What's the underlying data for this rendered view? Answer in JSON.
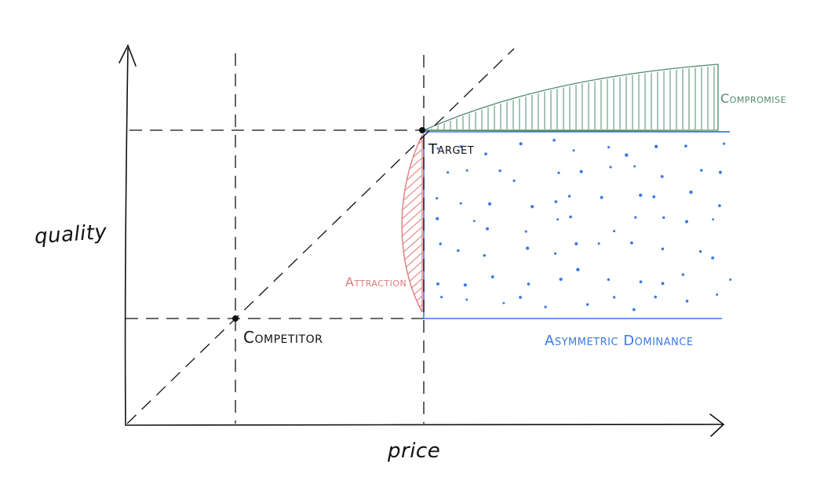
{
  "axes": {
    "x_label": "price",
    "y_label": "quality"
  },
  "points": {
    "competitor": "Competitor",
    "target": "Target"
  },
  "regions": {
    "compromise": "Compromise",
    "attraction": "Attraction",
    "asymmetric_dominance": "Asymmetric Dominance"
  },
  "colors": {
    "ink": "#111111",
    "compromise": "#4f8a6e",
    "attraction": "#e07a7a",
    "dominance": "#3b78e7"
  }
}
